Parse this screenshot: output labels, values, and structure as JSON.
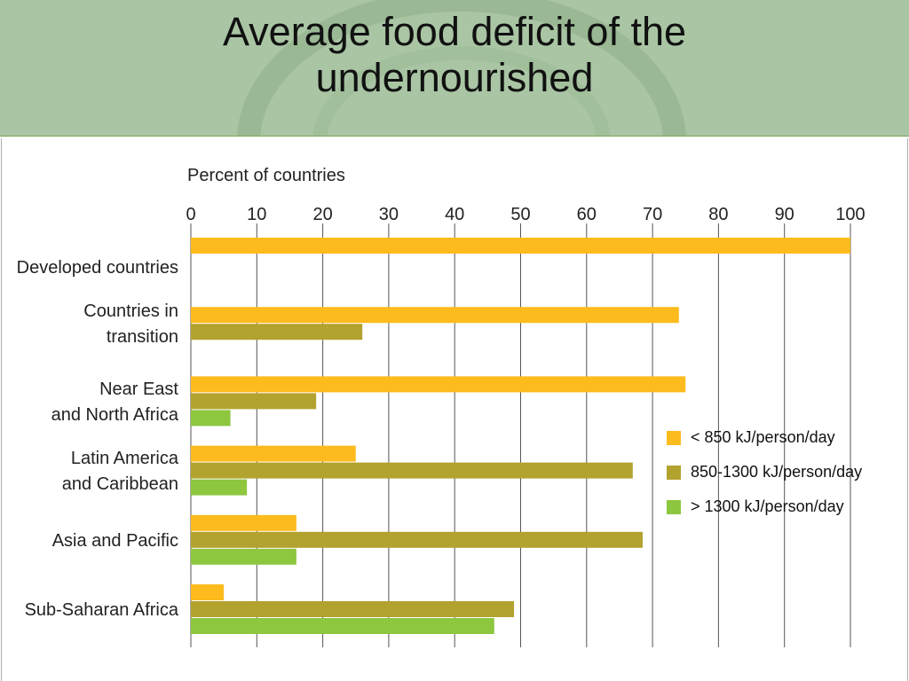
{
  "slide": {
    "title_line1": "Average food deficit of the",
    "title_line2": "undernourished",
    "header_color": "#a9c5a4",
    "accent_line_color": "#7aa65a"
  },
  "chart_data": {
    "type": "bar",
    "orientation": "horizontal",
    "title": "",
    "xlabel": "Percent of countries",
    "ylabel": "",
    "xlim": [
      0,
      100
    ],
    "xticks": [
      0,
      10,
      20,
      30,
      40,
      50,
      60,
      70,
      80,
      90,
      100
    ],
    "grid": true,
    "legend_position": "right",
    "categories": [
      [
        "Developed countries"
      ],
      [
        "Countries in",
        "transition"
      ],
      [
        "Near East",
        "and North Africa"
      ],
      [
        "Latin America",
        "and Caribbean"
      ],
      [
        "Asia and Pacific"
      ],
      [
        "Sub-Saharan Africa"
      ]
    ],
    "series": [
      {
        "name": "< 850 kJ/person/day",
        "color": "#fdbb1e",
        "values": [
          100,
          74,
          75,
          25,
          16,
          5
        ]
      },
      {
        "name": "850-1300 kJ/person/day",
        "color": "#b2a22e",
        "values": [
          null,
          26,
          19,
          67,
          68.5,
          49
        ]
      },
      {
        "name": "> 1300 kJ/person/day",
        "color": "#8dc63f",
        "values": [
          null,
          null,
          6,
          8.5,
          16,
          46
        ]
      }
    ]
  }
}
